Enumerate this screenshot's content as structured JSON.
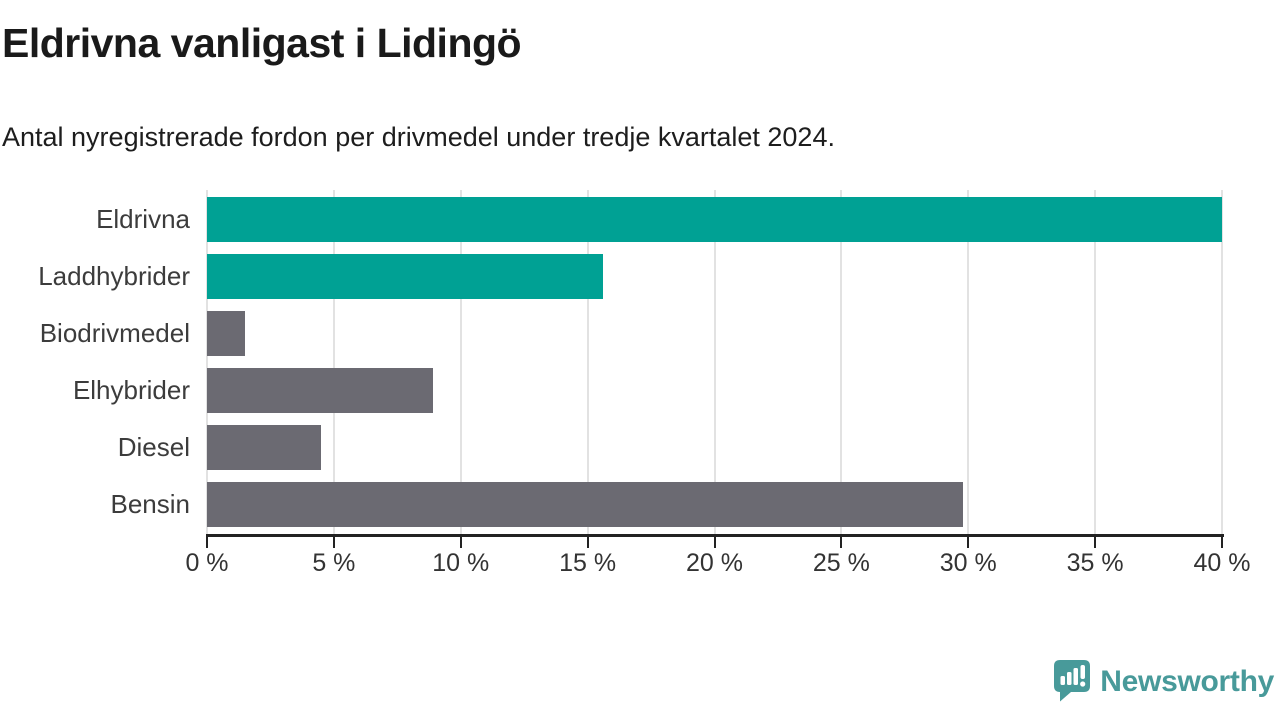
{
  "header": {
    "title": "Eldrivna vanligast i Lidingö",
    "subtitle": "Antal nyregistrerade fordon per drivmedel under tredje kvartalet 2024."
  },
  "chart_data": {
    "type": "bar",
    "orientation": "horizontal",
    "title": "Eldrivna vanligast i Lidingö",
    "subtitle": "Antal nyregistrerade fordon per drivmedel under tredje kvartalet 2024.",
    "categories": [
      "Eldrivna",
      "Laddhybrider",
      "Biodrivmedel",
      "Elhybrider",
      "Diesel",
      "Bensin"
    ],
    "values": [
      40.0,
      15.6,
      1.5,
      8.9,
      4.5,
      29.8
    ],
    "unit": "%",
    "xlabel": "",
    "ylabel": "",
    "xlim": [
      0,
      40
    ],
    "x_tick_values": [
      0,
      5,
      10,
      15,
      20,
      25,
      30,
      35,
      40
    ],
    "x_tick_labels": [
      "0 %",
      "5 %",
      "10 %",
      "15 %",
      "20 %",
      "25 %",
      "30 %",
      "35 %",
      "40 %"
    ],
    "grid": true,
    "legend": false,
    "colors": {
      "highlight": "#00a194",
      "default": "#6b6a72",
      "bar_palette": [
        "#00a194",
        "#00a194",
        "#6b6a72",
        "#6b6a72",
        "#6b6a72",
        "#6b6a72"
      ],
      "gridline": "#e2e2e2",
      "axis": "#222222"
    }
  },
  "footer": {
    "brand": "Newsworthy",
    "brand_color": "#489a9a",
    "logo_icon": "speech-bubble-bar-chart-exclamation"
  }
}
